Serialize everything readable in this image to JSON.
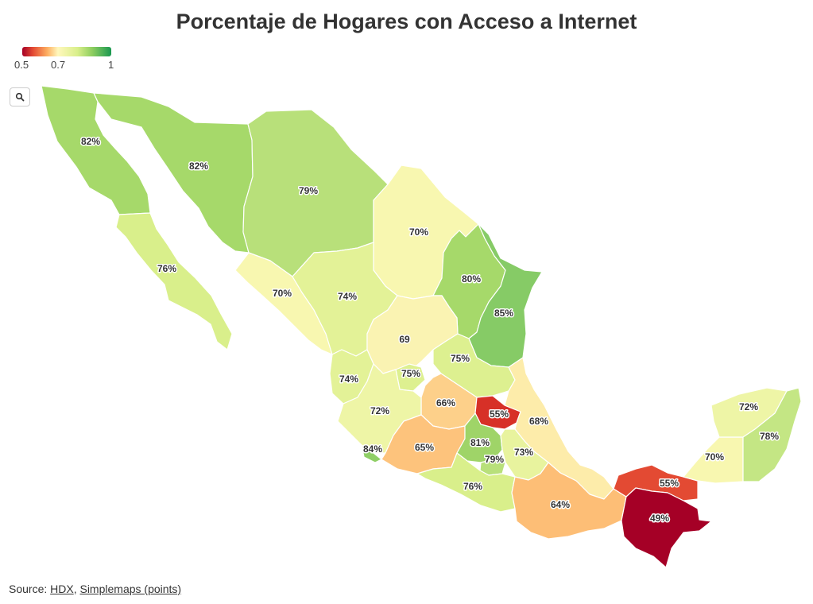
{
  "title": "Porcentaje de Hogares con Acceso a Internet",
  "legend": {
    "ticks": [
      "0.5",
      "0.7",
      "1"
    ]
  },
  "zoom_icon": "search-icon",
  "source": {
    "prefix": "Source:",
    "link1": "HDX",
    "separator": ",",
    "link2": "Simplemaps (points)"
  },
  "states": [
    {
      "label": "82%",
      "value": 0.82,
      "color": "#a6d96a"
    },
    {
      "label": "82%",
      "value": 0.82,
      "color": "#a6d96a"
    },
    {
      "label": "79%",
      "value": 0.79,
      "color": "#b8e07a"
    },
    {
      "label": "76%",
      "value": 0.76,
      "color": "#d9ef8b"
    },
    {
      "label": "70%",
      "value": 0.7,
      "color": "#f8f7b0"
    },
    {
      "label": "70%",
      "value": 0.7,
      "color": "#f8f7b0"
    },
    {
      "label": "74%",
      "value": 0.74,
      "color": "#e3f297"
    },
    {
      "label": "80%",
      "value": 0.8,
      "color": "#a6d96a"
    },
    {
      "label": "85%",
      "value": 0.85,
      "color": "#86cb66"
    },
    {
      "label": "69",
      "value": 0.69,
      "color": "#faf3b2"
    },
    {
      "label": "75%",
      "value": 0.75,
      "color": "#ddf090"
    },
    {
      "label": "75%",
      "value": 0.75,
      "color": "#ddf090"
    },
    {
      "label": "74%",
      "value": 0.74,
      "color": "#e3f297"
    },
    {
      "label": "66%",
      "value": 0.66,
      "color": "#fdd08a"
    },
    {
      "label": "55%",
      "value": 0.55,
      "color": "#d73027"
    },
    {
      "label": "68%",
      "value": 0.68,
      "color": "#fdecaa"
    },
    {
      "label": "72%",
      "value": 0.72,
      "color": "#eef5a6"
    },
    {
      "label": "65%",
      "value": 0.65,
      "color": "#fdc37c"
    },
    {
      "label": "81%",
      "value": 0.81,
      "color": "#9fd468"
    },
    {
      "label": "79%",
      "value": 0.79,
      "color": "#b8e07a"
    },
    {
      "label": "73%",
      "value": 0.73,
      "color": "#e8f39e"
    },
    {
      "label": "84%",
      "value": 0.84,
      "color": "#8fcf66"
    },
    {
      "label": "76%",
      "value": 0.76,
      "color": "#d9ef8b"
    },
    {
      "label": "64%",
      "value": 0.64,
      "color": "#fdbe76"
    },
    {
      "label": "55%",
      "value": 0.55,
      "color": "#e34a33"
    },
    {
      "label": "49%",
      "value": 0.49,
      "color": "#a50026"
    },
    {
      "label": "72%",
      "value": 0.72,
      "color": "#eef5a6"
    },
    {
      "label": "78%",
      "value": 0.78,
      "color": "#c4e684"
    },
    {
      "label": "70%",
      "value": 0.7,
      "color": "#f8f7b0"
    }
  ]
}
